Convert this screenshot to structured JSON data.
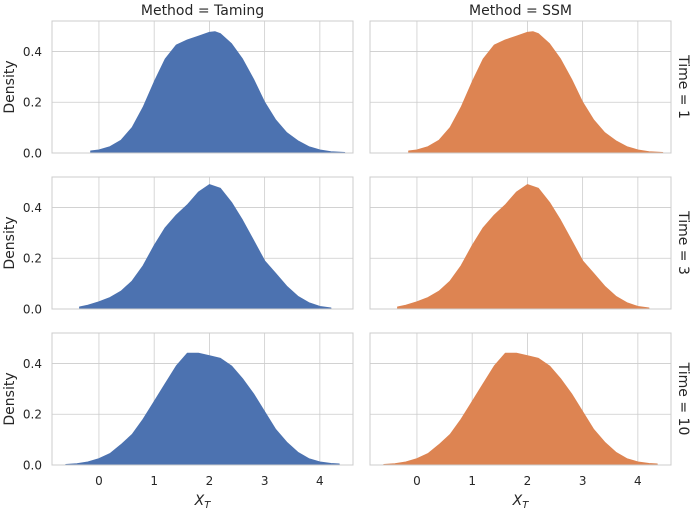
{
  "chart_data": {
    "type": "area",
    "subtype": "kde-density-facet-grid",
    "column_facets": [
      "Method = Taming",
      "Method = SSM"
    ],
    "row_facets": [
      "Time = 1",
      "Time = 3",
      "Time = 10"
    ],
    "xlabel": "X",
    "xlabel_subscript": "T",
    "ylabel": "Density",
    "xlim": [
      -0.85,
      4.6
    ],
    "ylim": [
      0,
      0.52
    ],
    "xticks": [
      "0",
      "1",
      "2",
      "3",
      "4"
    ],
    "yticks": [
      "0.0",
      "0.2",
      "0.4"
    ],
    "grid": true,
    "colors": {
      "Taming": "#4c72b0",
      "SSM": "#dd8452"
    },
    "panels": [
      {
        "row": "Time = 1",
        "col": "Method = Taming",
        "series": "Taming",
        "x": [
          -0.15,
          0.0,
          0.2,
          0.4,
          0.6,
          0.8,
          1.0,
          1.2,
          1.4,
          1.6,
          1.8,
          2.0,
          2.1,
          2.2,
          2.4,
          2.6,
          2.8,
          3.0,
          3.2,
          3.4,
          3.6,
          3.8,
          4.0,
          4.2,
          4.45
        ],
        "y": [
          0.008,
          0.012,
          0.025,
          0.05,
          0.1,
          0.18,
          0.28,
          0.37,
          0.425,
          0.445,
          0.46,
          0.475,
          0.478,
          0.47,
          0.43,
          0.37,
          0.29,
          0.2,
          0.13,
          0.08,
          0.048,
          0.025,
          0.012,
          0.005,
          0.002
        ]
      },
      {
        "row": "Time = 1",
        "col": "Method = SSM",
        "series": "SSM",
        "x": [
          -0.15,
          0.0,
          0.2,
          0.4,
          0.6,
          0.8,
          1.0,
          1.2,
          1.4,
          1.6,
          1.8,
          2.0,
          2.1,
          2.2,
          2.4,
          2.6,
          2.8,
          3.0,
          3.2,
          3.4,
          3.6,
          3.8,
          4.0,
          4.2,
          4.45
        ],
        "y": [
          0.008,
          0.012,
          0.025,
          0.05,
          0.1,
          0.18,
          0.28,
          0.37,
          0.425,
          0.445,
          0.46,
          0.475,
          0.478,
          0.47,
          0.43,
          0.37,
          0.29,
          0.2,
          0.13,
          0.08,
          0.048,
          0.025,
          0.012,
          0.005,
          0.002
        ]
      },
      {
        "row": "Time = 3",
        "col": "Method = Taming",
        "series": "Taming",
        "x": [
          -0.35,
          -0.2,
          0.0,
          0.2,
          0.4,
          0.6,
          0.8,
          1.0,
          1.2,
          1.4,
          1.6,
          1.8,
          2.0,
          2.2,
          2.4,
          2.6,
          2.8,
          3.0,
          3.2,
          3.4,
          3.6,
          3.8,
          4.0,
          4.2
        ],
        "y": [
          0.008,
          0.015,
          0.028,
          0.045,
          0.07,
          0.11,
          0.17,
          0.25,
          0.32,
          0.37,
          0.41,
          0.46,
          0.49,
          0.475,
          0.42,
          0.35,
          0.27,
          0.19,
          0.14,
          0.09,
          0.05,
          0.025,
          0.01,
          0.004
        ]
      },
      {
        "row": "Time = 3",
        "col": "Method = SSM",
        "series": "SSM",
        "x": [
          -0.35,
          -0.2,
          0.0,
          0.2,
          0.4,
          0.6,
          0.8,
          1.0,
          1.2,
          1.4,
          1.6,
          1.8,
          2.0,
          2.2,
          2.4,
          2.6,
          2.8,
          3.0,
          3.2,
          3.4,
          3.6,
          3.8,
          4.0,
          4.2
        ],
        "y": [
          0.008,
          0.015,
          0.028,
          0.045,
          0.07,
          0.11,
          0.17,
          0.25,
          0.32,
          0.37,
          0.41,
          0.46,
          0.49,
          0.475,
          0.42,
          0.35,
          0.27,
          0.19,
          0.14,
          0.09,
          0.05,
          0.025,
          0.01,
          0.004
        ]
      },
      {
        "row": "Time = 10",
        "col": "Method = Taming",
        "series": "Taming",
        "x": [
          -0.6,
          -0.4,
          -0.2,
          0.0,
          0.2,
          0.4,
          0.6,
          0.8,
          1.0,
          1.2,
          1.4,
          1.6,
          1.8,
          2.0,
          2.2,
          2.4,
          2.6,
          2.8,
          3.0,
          3.2,
          3.4,
          3.6,
          3.8,
          4.0,
          4.2,
          4.35
        ],
        "y": [
          0.002,
          0.005,
          0.012,
          0.025,
          0.045,
          0.08,
          0.12,
          0.18,
          0.25,
          0.32,
          0.39,
          0.44,
          0.44,
          0.43,
          0.42,
          0.39,
          0.34,
          0.28,
          0.21,
          0.14,
          0.09,
          0.05,
          0.025,
          0.012,
          0.006,
          0.004
        ]
      },
      {
        "row": "Time = 10",
        "col": "Method = SSM",
        "series": "SSM",
        "x": [
          -0.6,
          -0.4,
          -0.2,
          0.0,
          0.2,
          0.4,
          0.6,
          0.8,
          1.0,
          1.2,
          1.4,
          1.6,
          1.8,
          2.0,
          2.2,
          2.4,
          2.6,
          2.8,
          3.0,
          3.2,
          3.4,
          3.6,
          3.8,
          4.0,
          4.2,
          4.35
        ],
        "y": [
          0.002,
          0.005,
          0.012,
          0.025,
          0.045,
          0.08,
          0.12,
          0.18,
          0.25,
          0.32,
          0.39,
          0.44,
          0.44,
          0.43,
          0.42,
          0.39,
          0.34,
          0.28,
          0.21,
          0.14,
          0.09,
          0.05,
          0.025,
          0.012,
          0.006,
          0.004
        ]
      }
    ]
  }
}
